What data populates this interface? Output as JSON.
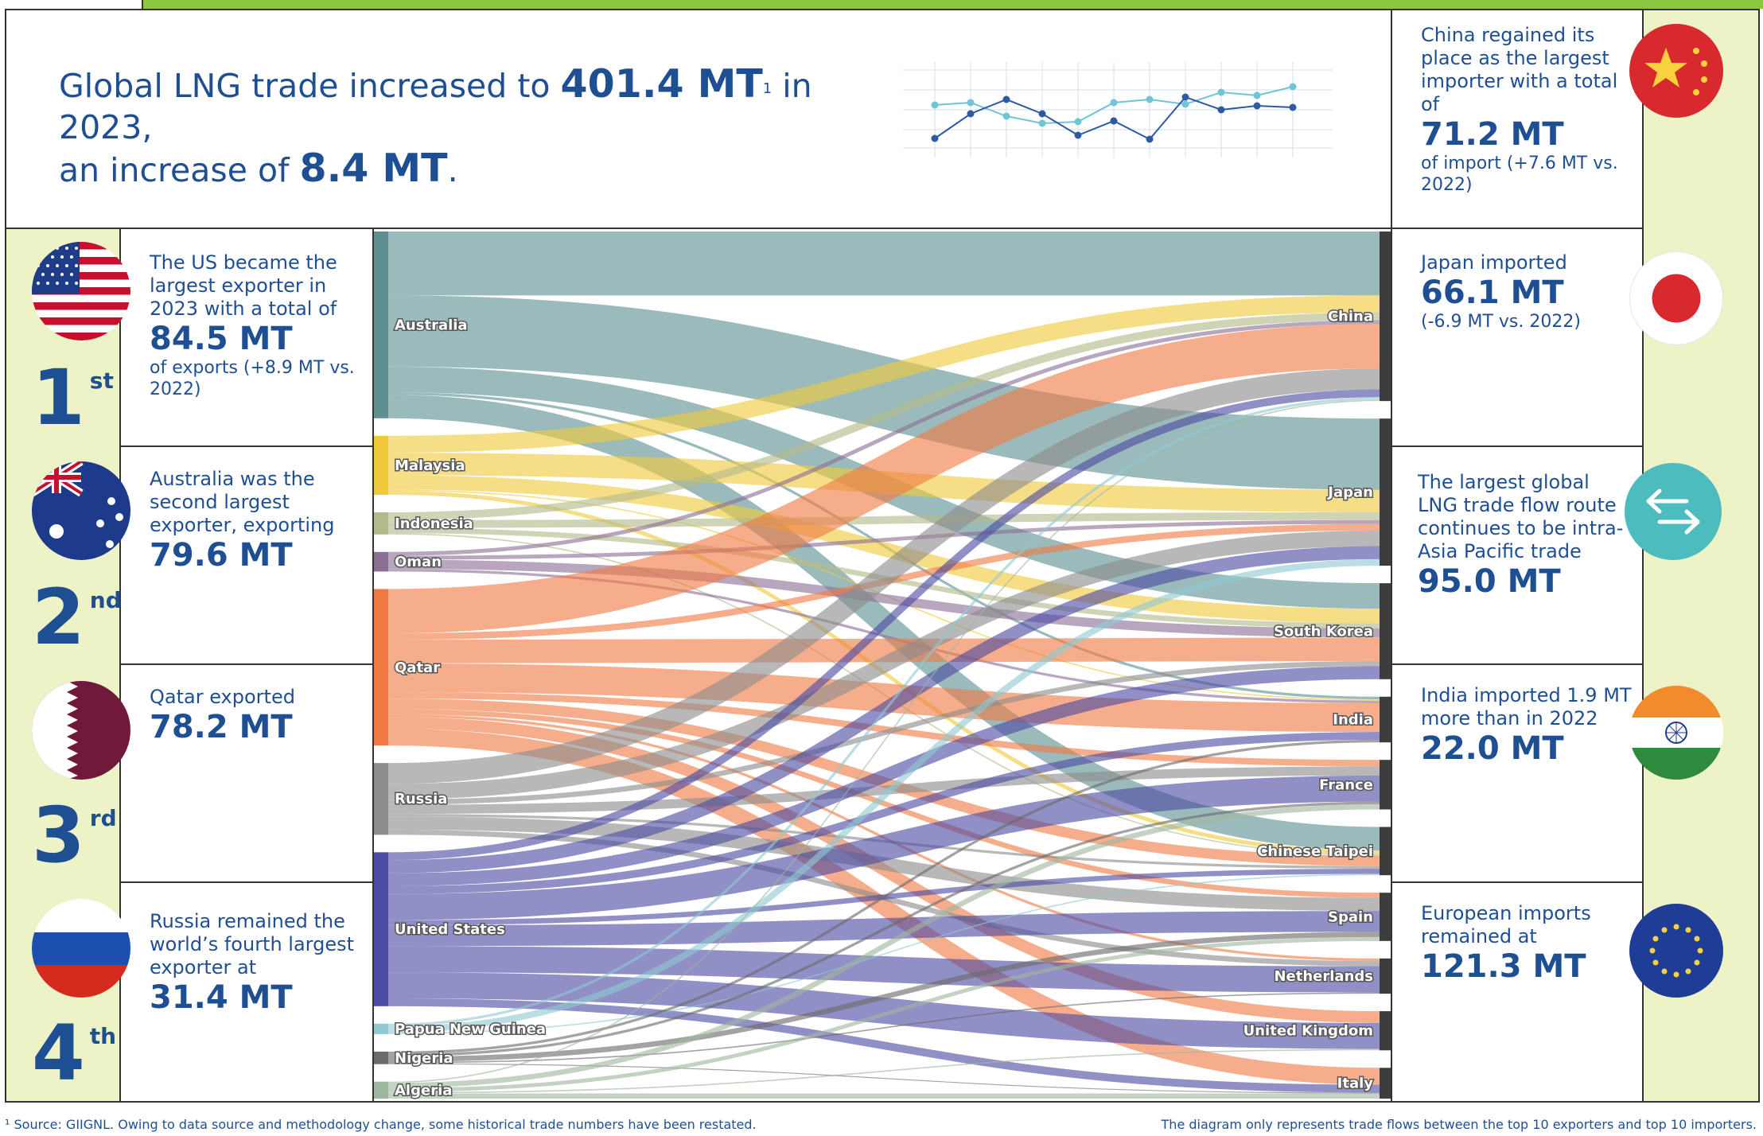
{
  "header": {
    "line1_pre": "Global LNG trade increased to ",
    "line1_value": "401.4 MT",
    "line1_sup": "1",
    "line1_post": " in 2023,",
    "line2_pre": "an increase of ",
    "line2_value": "8.4 MT",
    "line2_post": "."
  },
  "exporters_panel": [
    {
      "rank": "1",
      "suffix": "st",
      "flag": "us-flag-icon",
      "pre": "The US became the largest exporter in 2023 with a total of",
      "value": "84.5 MT",
      "post": "of exports (+8.9 MT vs. 2022)"
    },
    {
      "rank": "2",
      "suffix": "nd",
      "flag": "australia-flag-icon",
      "pre": "Australia was the second largest exporter, exporting",
      "value": "79.6 MT",
      "post": ""
    },
    {
      "rank": "3",
      "suffix": "rd",
      "flag": "qatar-flag-icon",
      "pre": "Qatar exported",
      "value": "78.2 MT",
      "post": ""
    },
    {
      "rank": "4",
      "suffix": "th",
      "flag": "russia-flag-icon",
      "pre": "Russia remained the world’s fourth largest exporter at",
      "value": "31.4 MT",
      "post": ""
    }
  ],
  "importers_panel": [
    {
      "icon": "china-flag-icon",
      "pre": "China regained its place as  the largest importer with a total of",
      "value": "71.2 MT",
      "post": "of import (+7.6 MT vs. 2022)"
    },
    {
      "icon": "japan-flag-icon",
      "pre": "Japan imported",
      "value": "66.1 MT",
      "post": "(-6.9 MT vs. 2022)"
    },
    {
      "icon": "trade-arrows-icon",
      "pre": "The largest global LNG trade flow route continues to be intra-Asia Pacific trade",
      "value": "95.0 MT",
      "post": ""
    },
    {
      "icon": "india-flag-icon",
      "pre": "India imported 1.9 MT more than in 2022",
      "value": "22.0 MT",
      "post": ""
    },
    {
      "icon": "eu-flag-icon",
      "pre": "European imports remained at",
      "value": "121.3 MT",
      "post": ""
    }
  ],
  "footnote_left": "¹ Source: GIIGNL. Owing to data source and methodology change, some historical trade numbers have been restated.",
  "footnote_right": "The diagram only represents trade flows between the top 10 exporters and top 10 importers.",
  "colors": {
    "navy": "#1f4f93",
    "green": "#8dc641",
    "panel": "#eef3c7",
    "australia": "#5e8f91",
    "malaysia": "#f0c93b",
    "indonesia": "#b3b98a",
    "oman": "#8a6f95",
    "qatar": "#ef7a43",
    "russia": "#8c8c8c",
    "united_states": "#4c4ba3",
    "png": "#8fc9d2",
    "nigeria": "#6b6b6b",
    "algeria": "#9fb79f",
    "importer": "#3d3d3d"
  },
  "chart_data": {
    "type": "sankey",
    "sources": [
      "Australia",
      "Malaysia",
      "Indonesia",
      "Oman",
      "Qatar",
      "Russia",
      "United States",
      "Papua New Guinea",
      "Nigeria",
      "Algeria"
    ],
    "targets": [
      "China",
      "Japan",
      "South Korea",
      "India",
      "France",
      "Chinese Taipei",
      "Spain",
      "Netherlands",
      "United Kingdom",
      "Italy"
    ],
    "links": [
      {
        "source": "Australia",
        "target": "China",
        "value": 24.5
      },
      {
        "source": "Australia",
        "target": "Japan",
        "value": 27.3
      },
      {
        "source": "Australia",
        "target": "South Korea",
        "value": 9.8
      },
      {
        "source": "Australia",
        "target": "India",
        "value": 1.0
      },
      {
        "source": "Australia",
        "target": "Chinese Taipei",
        "value": 9.0
      },
      {
        "source": "Malaysia",
        "target": "China",
        "value": 6.5
      },
      {
        "source": "Malaysia",
        "target": "Japan",
        "value": 8.6
      },
      {
        "source": "Malaysia",
        "target": "South Korea",
        "value": 5.5
      },
      {
        "source": "Malaysia",
        "target": "Chinese Taipei",
        "value": 1.5
      },
      {
        "source": "Malaysia",
        "target": "India",
        "value": 0.5
      },
      {
        "source": "Indonesia",
        "target": "China",
        "value": 3.0
      },
      {
        "source": "Indonesia",
        "target": "Japan",
        "value": 3.0
      },
      {
        "source": "Indonesia",
        "target": "South Korea",
        "value": 2.0
      },
      {
        "source": "Indonesia",
        "target": "Chinese Taipei",
        "value": 0.5
      },
      {
        "source": "Oman",
        "target": "China",
        "value": 1.5
      },
      {
        "source": "Oman",
        "target": "Japan",
        "value": 1.5
      },
      {
        "source": "Oman",
        "target": "South Korea",
        "value": 3.5
      },
      {
        "source": "Oman",
        "target": "India",
        "value": 1.0
      },
      {
        "source": "Qatar",
        "target": "China",
        "value": 17.0
      },
      {
        "source": "Qatar",
        "target": "Japan",
        "value": 2.5
      },
      {
        "source": "Qatar",
        "target": "South Korea",
        "value": 9.0
      },
      {
        "source": "Qatar",
        "target": "India",
        "value": 11.0
      },
      {
        "source": "Qatar",
        "target": "France",
        "value": 2.5
      },
      {
        "source": "Qatar",
        "target": "Chinese Taipei",
        "value": 4.0
      },
      {
        "source": "Qatar",
        "target": "Spain",
        "value": 2.0
      },
      {
        "source": "Qatar",
        "target": "Netherlands",
        "value": 1.0
      },
      {
        "source": "Qatar",
        "target": "United Kingdom",
        "value": 4.5
      },
      {
        "source": "Qatar",
        "target": "Italy",
        "value": 6.5
      },
      {
        "source": "Russia",
        "target": "China",
        "value": 8.0
      },
      {
        "source": "Russia",
        "target": "Japan",
        "value": 6.0
      },
      {
        "source": "Russia",
        "target": "South Korea",
        "value": 2.0
      },
      {
        "source": "Russia",
        "target": "France",
        "value": 3.5
      },
      {
        "source": "Russia",
        "target": "Chinese Taipei",
        "value": 1.0
      },
      {
        "source": "Russia",
        "target": "Spain",
        "value": 5.0
      },
      {
        "source": "Russia",
        "target": "Netherlands",
        "value": 2.0
      },
      {
        "source": "United States",
        "target": "China",
        "value": 3.0
      },
      {
        "source": "United States",
        "target": "Japan",
        "value": 5.0
      },
      {
        "source": "United States",
        "target": "South Korea",
        "value": 5.0
      },
      {
        "source": "United States",
        "target": "India",
        "value": 3.0
      },
      {
        "source": "United States",
        "target": "France",
        "value": 10.0
      },
      {
        "source": "United States",
        "target": "Chinese Taipei",
        "value": 2.0
      },
      {
        "source": "United States",
        "target": "Spain",
        "value": 8.0
      },
      {
        "source": "United States",
        "target": "Netherlands",
        "value": 10.0
      },
      {
        "source": "United States",
        "target": "United Kingdom",
        "value": 10.0
      },
      {
        "source": "United States",
        "target": "Italy",
        "value": 3.0
      },
      {
        "source": "Papua New Guinea",
        "target": "China",
        "value": 1.0
      },
      {
        "source": "Papua New Guinea",
        "target": "Japan",
        "value": 2.5
      },
      {
        "source": "Papua New Guinea",
        "target": "Chinese Taipei",
        "value": 0.5
      },
      {
        "source": "Nigeria",
        "target": "France",
        "value": 1.0
      },
      {
        "source": "Nigeria",
        "target": "Spain",
        "value": 2.0
      },
      {
        "source": "Nigeria",
        "target": "India",
        "value": 1.0
      },
      {
        "source": "Nigeria",
        "target": "Netherlands",
        "value": 0.5
      },
      {
        "source": "Nigeria",
        "target": "Italy",
        "value": 0.3
      },
      {
        "source": "Algeria",
        "target": "France",
        "value": 2.0
      },
      {
        "source": "Algeria",
        "target": "Spain",
        "value": 1.5
      },
      {
        "source": "Algeria",
        "target": "Italy",
        "value": 2.0
      },
      {
        "source": "Algeria",
        "target": "United Kingdom",
        "value": 0.5
      },
      {
        "source": "Algeria",
        "target": "China",
        "value": 0.5
      }
    ]
  }
}
